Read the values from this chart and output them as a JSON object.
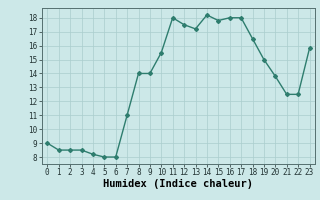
{
  "x": [
    0,
    1,
    2,
    3,
    4,
    5,
    6,
    7,
    8,
    9,
    10,
    11,
    12,
    13,
    14,
    15,
    16,
    17,
    18,
    19,
    20,
    21,
    22,
    23
  ],
  "y": [
    9.0,
    8.5,
    8.5,
    8.5,
    8.2,
    8.0,
    8.0,
    11.0,
    14.0,
    14.0,
    15.5,
    18.0,
    17.5,
    17.2,
    18.2,
    17.8,
    18.0,
    18.0,
    16.5,
    15.0,
    13.8,
    12.5,
    12.5,
    15.8
  ],
  "line_color": "#2e7d6e",
  "marker": "D",
  "marker_size": 2.0,
  "bg_color": "#cce8e8",
  "grid_color": "#aacece",
  "xlabel": "Humidex (Indice chaleur)",
  "xlim": [
    -0.5,
    23.5
  ],
  "ylim": [
    7.5,
    18.7
  ],
  "yticks": [
    8,
    9,
    10,
    11,
    12,
    13,
    14,
    15,
    16,
    17,
    18
  ],
  "xticks": [
    0,
    1,
    2,
    3,
    4,
    5,
    6,
    7,
    8,
    9,
    10,
    11,
    12,
    13,
    14,
    15,
    16,
    17,
    18,
    19,
    20,
    21,
    22,
    23
  ],
  "tick_label_fontsize": 5.5,
  "xlabel_fontsize": 7.5,
  "line_width": 1.0
}
